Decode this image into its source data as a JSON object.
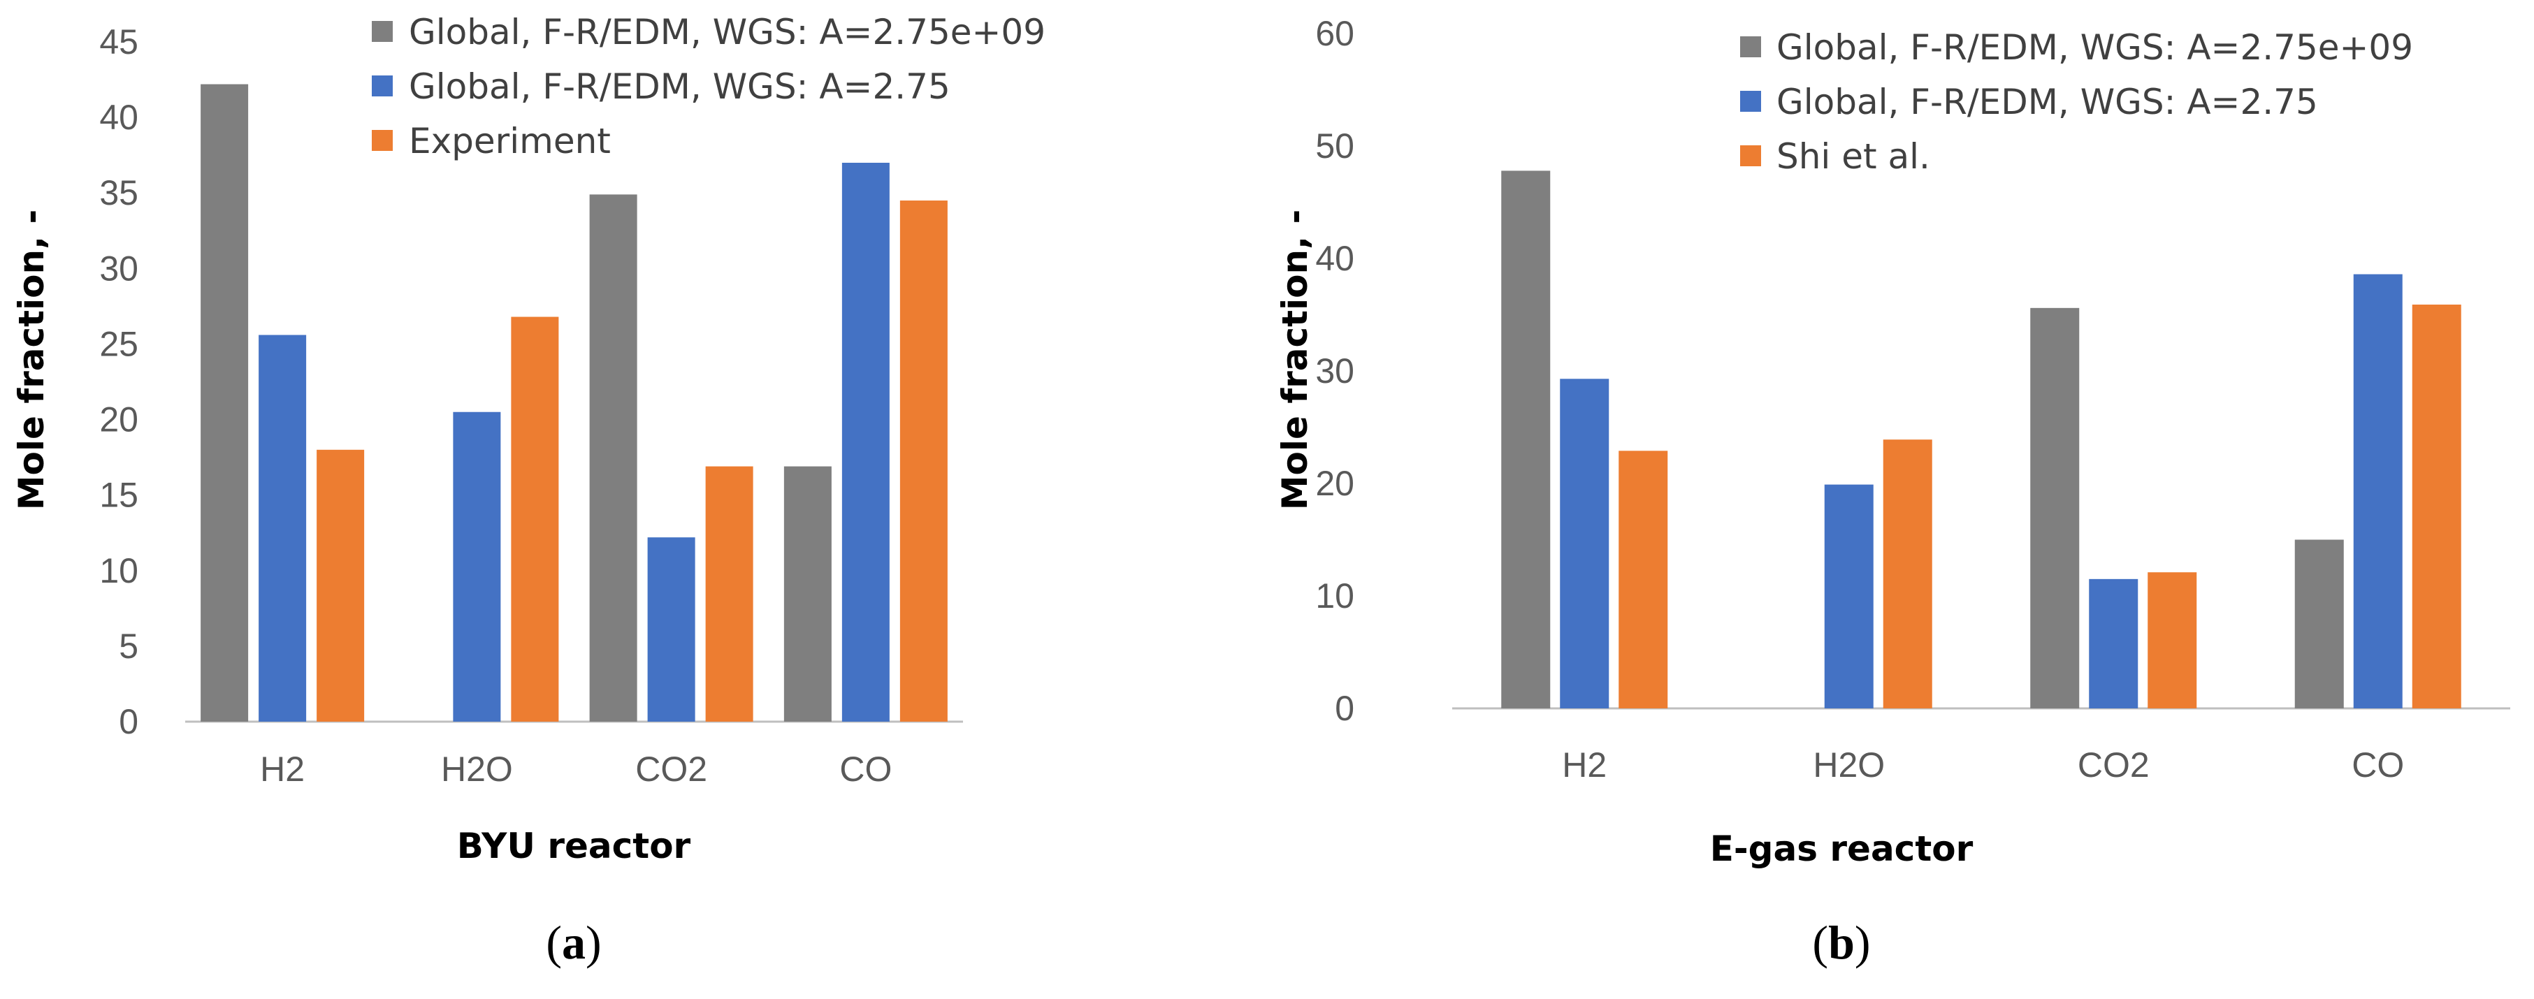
{
  "chart_data": [
    {
      "type": "bar",
      "panel_label": "a",
      "xlabel": "BYU reactor",
      "ylabel": "Mole fraction, -",
      "ylim": [
        0,
        45
      ],
      "ytick_step": 5,
      "categories": [
        "H2",
        "H2O",
        "CO2",
        "CO"
      ],
      "legend_position": "top-right",
      "series": [
        {
          "name": "Global, F-R/EDM, WGS: A=2.75e+09",
          "color": "#7f7f7f",
          "values": [
            42.2,
            0,
            34.9,
            16.9
          ]
        },
        {
          "name": "Global, F-R/EDM, WGS: A=2.75",
          "color": "#4472c4",
          "values": [
            25.6,
            20.5,
            12.2,
            37.0
          ]
        },
        {
          "name": "Experiment",
          "color": "#ed7d31",
          "values": [
            18.0,
            26.8,
            16.9,
            34.5
          ]
        }
      ]
    },
    {
      "type": "bar",
      "panel_label": "b",
      "xlabel": "E-gas reactor",
      "ylabel": "Mole fraction, -",
      "ylim": [
        0,
        60
      ],
      "ytick_step": 10,
      "categories": [
        "H2",
        "H2O",
        "CO2",
        "CO"
      ],
      "legend_position": "top-right",
      "series": [
        {
          "name": "Global, F-R/EDM, WGS: A=2.75e+09",
          "color": "#7f7f7f",
          "values": [
            47.8,
            0,
            35.6,
            15.0
          ]
        },
        {
          "name": "Global, F-R/EDM, WGS: A=2.75",
          "color": "#4472c4",
          "values": [
            29.3,
            19.9,
            11.5,
            38.6
          ]
        },
        {
          "name": "Shi et al.",
          "color": "#ed7d31",
          "values": [
            22.9,
            23.9,
            12.1,
            35.9
          ]
        }
      ]
    }
  ]
}
